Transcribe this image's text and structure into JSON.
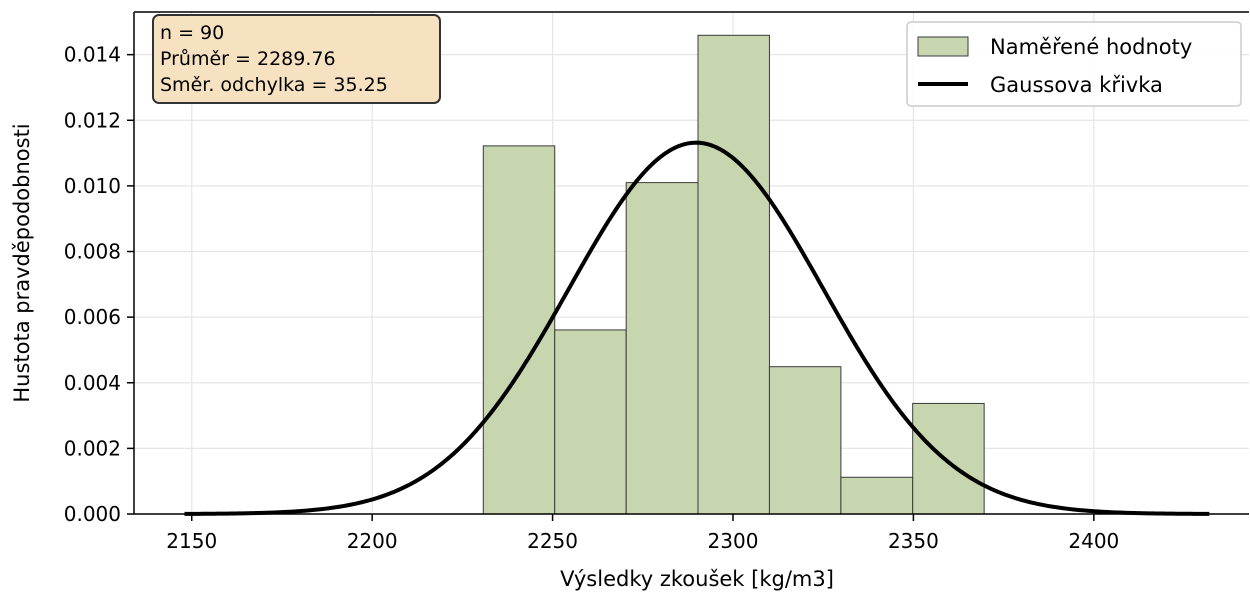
{
  "chart_data": {
    "type": "bar",
    "subtype": "histogram-with-normal-curve",
    "xlabel": "Výsledky zkoušek [kg/m3]",
    "ylabel": "Hustota pravděpodobnosti",
    "xlim": [
      2134,
      2443
    ],
    "ylim": [
      0,
      0.0153
    ],
    "x_ticks": [
      2150,
      2200,
      2250,
      2300,
      2350,
      2400
    ],
    "y_ticks": [
      0.0,
      0.002,
      0.004,
      0.006,
      0.008,
      0.01,
      0.012,
      0.014
    ],
    "x_tick_labels": [
      "2150",
      "2200",
      "2250",
      "2300",
      "2350",
      "2400"
    ],
    "y_tick_labels": [
      "0.000",
      "0.002",
      "0.004",
      "0.006",
      "0.008",
      "0.010",
      "0.012",
      "0.014"
    ],
    "grid": true,
    "bins": [
      {
        "x0": 2230.8,
        "x1": 2250.6,
        "density": 0.01122
      },
      {
        "x0": 2250.6,
        "x1": 2270.4,
        "density": 0.00561
      },
      {
        "x0": 2270.4,
        "x1": 2290.3,
        "density": 0.0101
      },
      {
        "x0": 2290.3,
        "x1": 2310.1,
        "density": 0.01459
      },
      {
        "x0": 2310.1,
        "x1": 2329.9,
        "density": 0.00449
      },
      {
        "x0": 2329.9,
        "x1": 2349.8,
        "density": 0.00112
      },
      {
        "x0": 2349.8,
        "x1": 2369.6,
        "density": 0.00337
      }
    ],
    "normal_curve": {
      "mean": 2289.76,
      "std": 35.25,
      "x_range": [
        2148,
        2432
      ]
    },
    "stats_box": {
      "lines": [
        "n = 90",
        "Průměr = 2289.76",
        "Směr. odchylka = 35.25"
      ]
    },
    "legend": {
      "placement": "top-right",
      "entries": [
        "Naměřené hodnoty",
        "Gaussova křivka"
      ]
    },
    "colors": {
      "bar_fill": "#c8d6b0",
      "bar_edge": "#3a3a3a",
      "curve": "#000000",
      "grid": "#e6e6e6",
      "stats_box_fill": "#f6e2c1",
      "stats_box_edge": "#333333"
    }
  }
}
